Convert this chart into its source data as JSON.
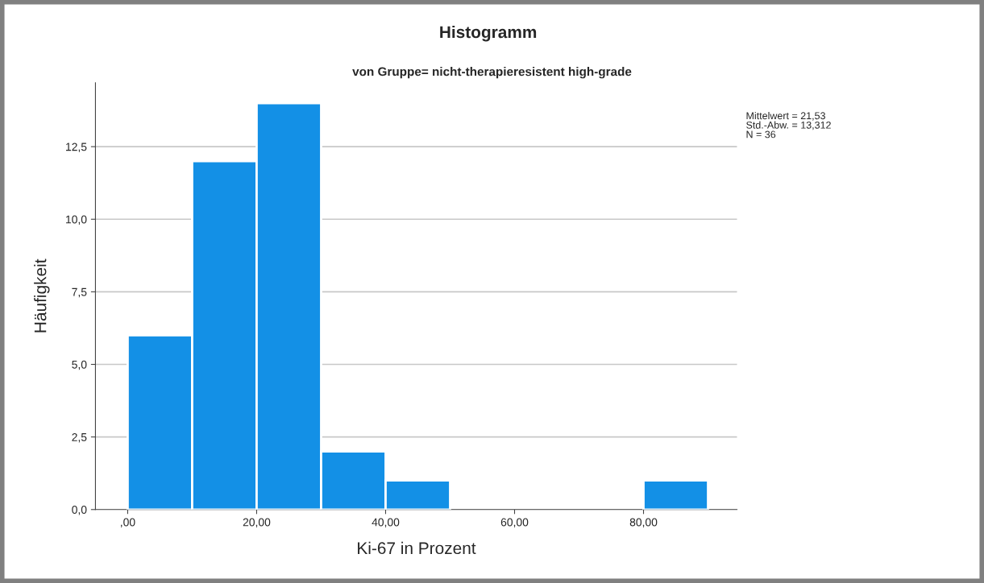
{
  "chart_data": {
    "type": "histogram",
    "title": "Histogramm",
    "subtitle": "von Gruppe= nicht-therapieresistent high-grade",
    "xlabel": "Ki-67 in Prozent",
    "ylabel": "Häufigkeit",
    "bins": [
      0,
      10,
      20,
      30,
      40,
      50,
      60,
      70,
      80,
      90
    ],
    "values": [
      6,
      12,
      14,
      2,
      1,
      0,
      0,
      0,
      1
    ],
    "color": "#1390e6",
    "xlim": [
      -5,
      94.5
    ],
    "xticks": [
      {
        "value": 0,
        "label": ",00"
      },
      {
        "value": 20,
        "label": "20,00"
      },
      {
        "value": 40,
        "label": "40,00"
      },
      {
        "value": 60,
        "label": "60,00"
      },
      {
        "value": 80,
        "label": "80,00"
      }
    ],
    "ylim": [
      0,
      14.7
    ],
    "yticks": [
      {
        "value": 0,
        "label": "0,0"
      },
      {
        "value": 2.5,
        "label": "2,5"
      },
      {
        "value": 5,
        "label": "5,0"
      },
      {
        "value": 7.5,
        "label": "7,5"
      },
      {
        "value": 10,
        "label": "10,0"
      },
      {
        "value": 12.5,
        "label": "12,5"
      }
    ],
    "grid": "y",
    "legend": false,
    "annotations": [
      "Mittelwert = 21,53",
      "Std.-Abw. = 13,312",
      "N = 36"
    ]
  }
}
